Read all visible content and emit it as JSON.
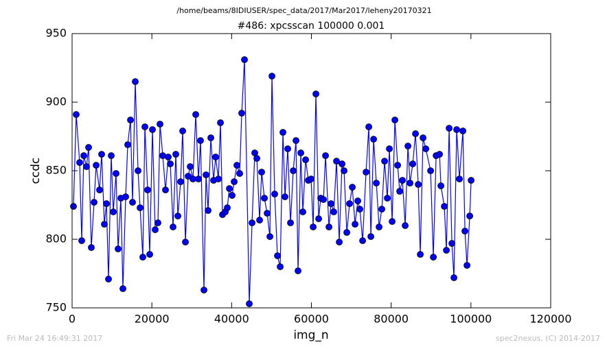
{
  "chart_data": {
    "type": "line",
    "suptitle": "/home/beams/8IDIUSER/spec_data/2017/Mar2017/leheny20170321",
    "title": "#486: xpcsscan 100000 0.001",
    "xlabel": "img_n",
    "ylabel": "ccdc",
    "xlim": [
      0,
      120000
    ],
    "xticks": [
      0,
      20000,
      40000,
      60000,
      80000,
      100000,
      120000
    ],
    "ylim": [
      750,
      950
    ],
    "yticks": [
      750,
      800,
      850,
      900,
      950
    ],
    "color": "#0000ff",
    "marker_edge": "#000000",
    "x": [
      344,
      1033,
      1894,
      2411,
      2927,
      3616,
      4133,
      4822,
      5510,
      6027,
      6888,
      7405,
      8093,
      8610,
      9127,
      9815,
      10332,
      11021,
      11537,
      12226,
      12743,
      13432,
      13948,
      14637,
      15154,
      15842,
      16531,
      17048,
      17736,
      18253,
      18942,
      19459,
      20147,
      20836,
      21525,
      22041,
      22730,
      23419,
      24108,
      24625,
      25313,
      26002,
      26519,
      27208,
      27724,
      28413,
      29102,
      29618,
      30307,
      30996,
      31685,
      32201,
      33062,
      33579,
      34096,
      34784,
      35473,
      35990,
      36679,
      37195,
      37712,
      38401,
      38917,
      39434,
      40123,
      40639,
      41328,
      42017,
      42533,
      43222,
      44427,
      45116,
      45805,
      46322,
      47011,
      47527,
      48216,
      48905,
      49594,
      50110,
      50799,
      51488,
      52177,
      52865,
      53382,
      54071,
      54760,
      55448,
      56137,
      56654,
      57343,
      57859,
      58548,
      59237,
      59926,
      60442,
      61131,
      61820,
      62336,
      63025,
      63542,
      64403,
      64919,
      65608,
      66297,
      66986,
      67675,
      68191,
      68880,
      69569,
      70258,
      70946,
      71635,
      72152,
      72841,
      73702,
      74390,
      74907,
      75596,
      76285,
      76973,
      77662,
      78351,
      79040,
      79556,
      80245,
      80934,
      81623,
      82139,
      82828,
      83517,
      84206,
      84722,
      85411,
      86100,
      86789,
      87305,
      87994,
      88683,
      89888,
      90577,
      91266,
      92127,
      92471,
      93332,
      93849,
      94537,
      95226,
      95743,
      96432,
      97121,
      97982,
      98498,
      99015,
      99704,
      100048
    ],
    "values": [
      824,
      891,
      856,
      799,
      861,
      853,
      867,
      794,
      827,
      854,
      836,
      862,
      811,
      826,
      771,
      861,
      820,
      848,
      793,
      830,
      764,
      831,
      869,
      887,
      827,
      915,
      850,
      823,
      787,
      882,
      836,
      789,
      880,
      807,
      812,
      884,
      861,
      836,
      860,
      855,
      809,
      862,
      817,
      842,
      879,
      798,
      846,
      853,
      844,
      891,
      844,
      872,
      763,
      847,
      821,
      874,
      843,
      860,
      844,
      885,
      818,
      820,
      823,
      837,
      832,
      842,
      854,
      848,
      892,
      931,
      753,
      812,
      863,
      859,
      814,
      849,
      830,
      819,
      802,
      919,
      833,
      788,
      780,
      878,
      831,
      866,
      812,
      850,
      872,
      777,
      863,
      820,
      858,
      843,
      844,
      809,
      906,
      815,
      830,
      829,
      861,
      809,
      826,
      820,
      857,
      798,
      855,
      850,
      805,
      826,
      838,
      811,
      828,
      822,
      799,
      849,
      882,
      802,
      873,
      841,
      809,
      822,
      857,
      830,
      866,
      813,
      887,
      854,
      835,
      843,
      810,
      868,
      841,
      855,
      877,
      840,
      789,
      874,
      866,
      850,
      787,
      861,
      862,
      839,
      824,
      792,
      881,
      797,
      772,
      880,
      844,
      879,
      806,
      781,
      817,
      843
    ]
  },
  "footer": {
    "left": "Fri Mar 24 16:49:31 2017",
    "right": "spec2nexus, (C) 2014-2017"
  }
}
